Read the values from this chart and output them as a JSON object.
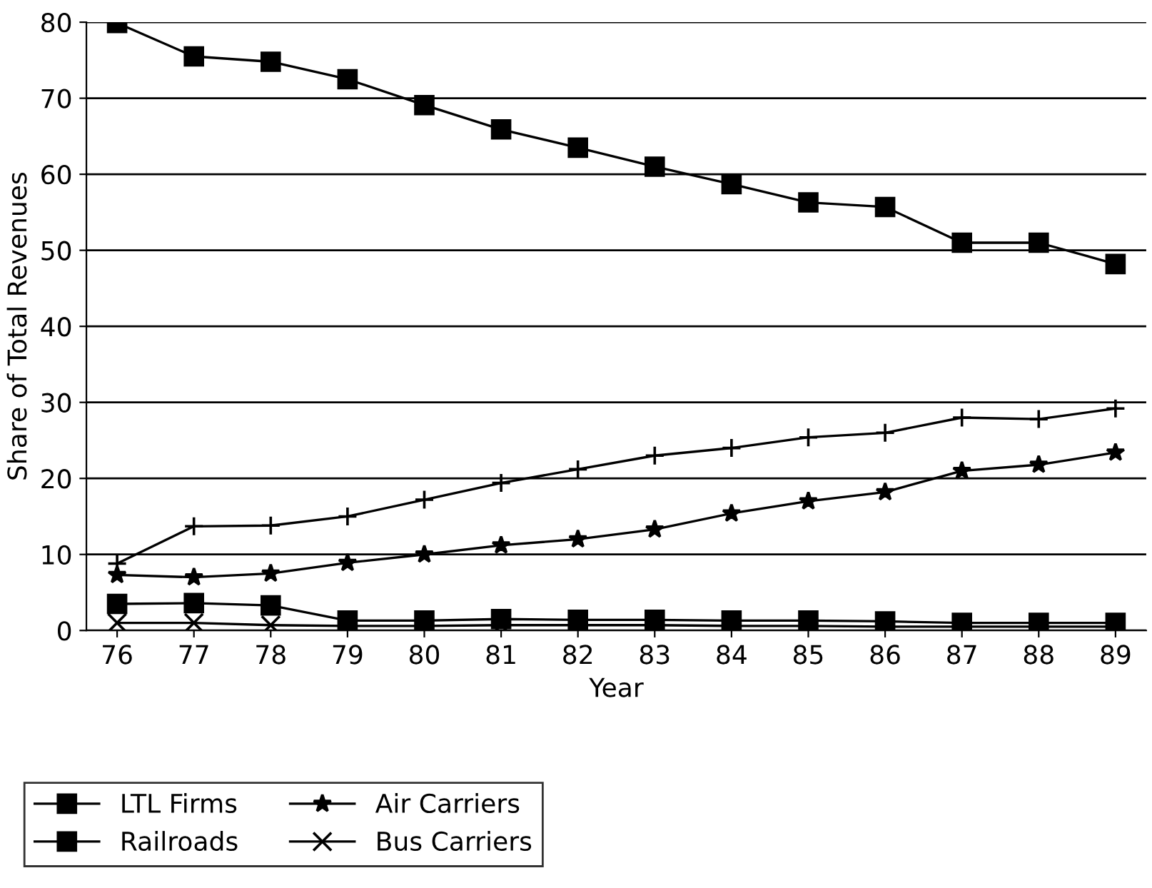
{
  "chart_data": {
    "type": "line",
    "xlabel": "Year",
    "ylabel": "Share of Total Revenues",
    "categories": [
      "76",
      "77",
      "78",
      "79",
      "80",
      "81",
      "82",
      "83",
      "84",
      "85",
      "86",
      "87",
      "88",
      "89"
    ],
    "ylim": [
      0,
      80
    ],
    "yticks": [
      0,
      10,
      20,
      30,
      40,
      50,
      60,
      70,
      80
    ],
    "grid": "y",
    "legend": "bottom",
    "line_style": "solid",
    "series": [
      {
        "name": "LTL Firms",
        "color": "#000000",
        "marker": "square",
        "values": [
          79.9,
          75.5,
          74.8,
          72.5,
          69.1,
          65.9,
          63.5,
          61.0,
          58.7,
          56.3,
          55.7,
          51.0,
          51.0,
          48.2
        ]
      },
      {
        "color": "#000000",
        "marker": "plus",
        "values": [
          8.8,
          13.7,
          13.8,
          15.0,
          17.2,
          19.4,
          21.2,
          23.0,
          24.0,
          25.4,
          26.0,
          28.0,
          27.8,
          29.2
        ]
      },
      {
        "name": "Air Carriers",
        "color": "#000000",
        "marker": "star",
        "values": [
          7.3,
          7.0,
          7.5,
          8.9,
          10.0,
          11.2,
          12.0,
          13.3,
          15.4,
          17.0,
          18.2,
          21.0,
          21.8,
          23.4
        ]
      },
      {
        "name": "Railroads",
        "color": "#000000",
        "marker": "square",
        "values": [
          3.5,
          3.6,
          3.3,
          1.3,
          1.3,
          1.5,
          1.4,
          1.4,
          1.3,
          1.3,
          1.2,
          1.0,
          1.0,
          1.0
        ]
      },
      {
        "name": "Bus Carriers",
        "color": "#000000",
        "marker": "cross",
        "values": [
          1.0,
          1.0,
          0.7,
          0.6,
          0.6,
          0.7,
          0.7,
          0.7,
          0.6,
          0.6,
          0.5,
          0.5,
          0.5,
          0.5
        ]
      }
    ]
  }
}
